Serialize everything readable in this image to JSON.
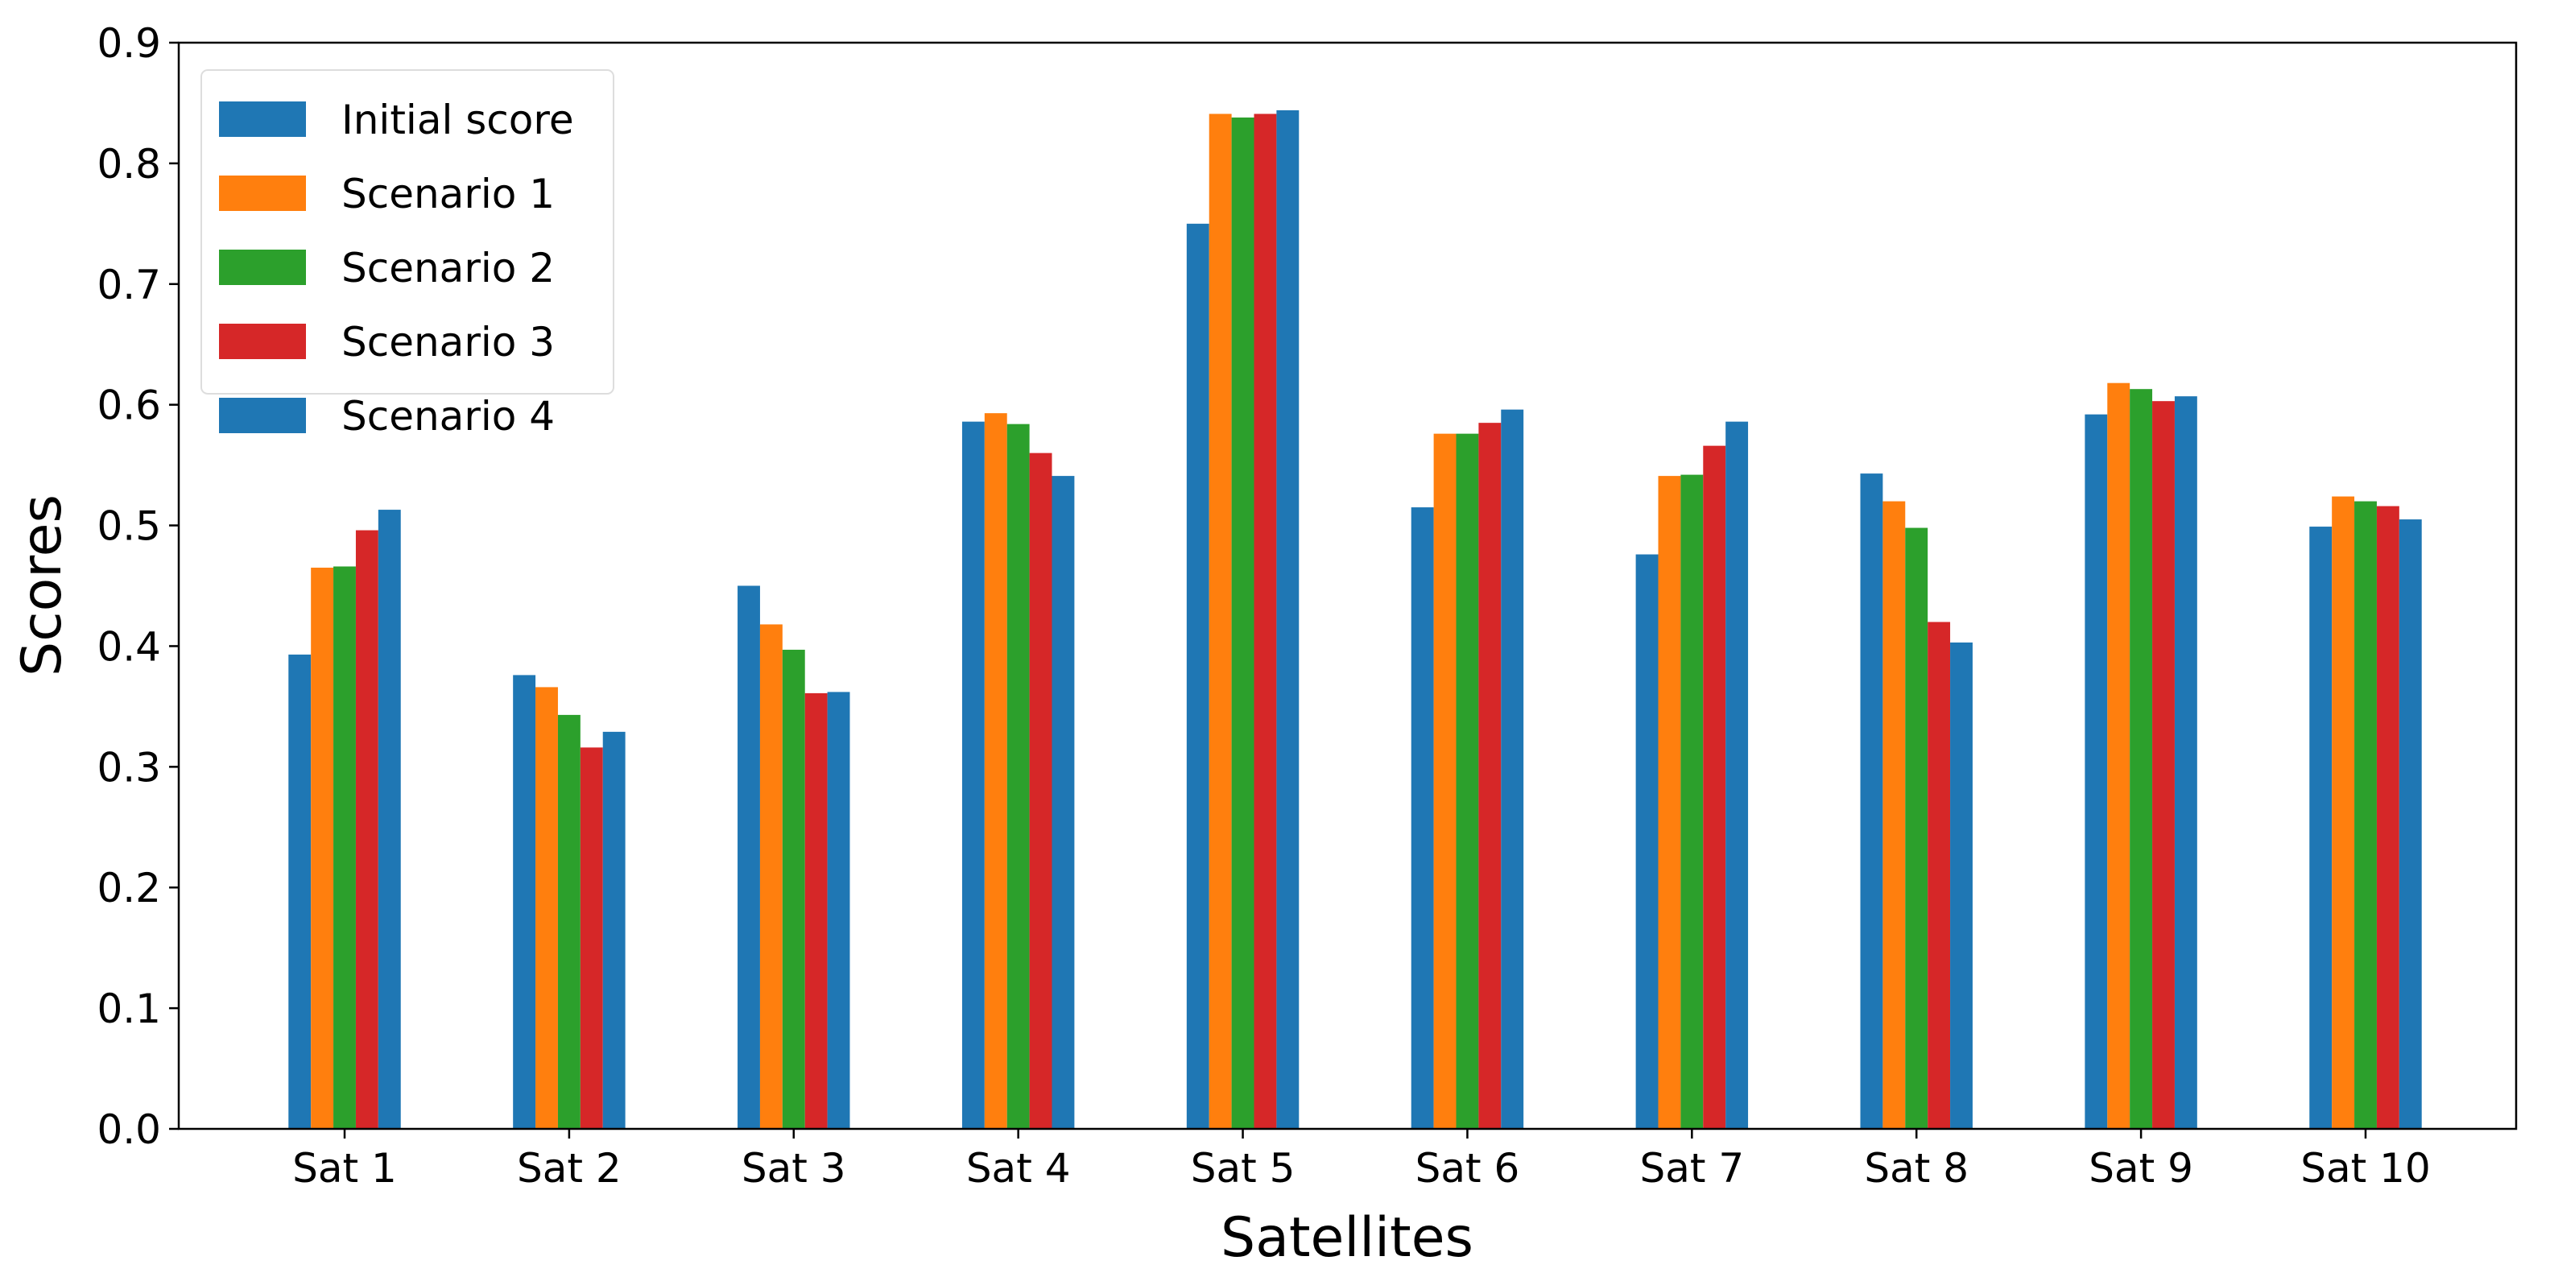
{
  "chart_data": {
    "type": "bar",
    "title": "",
    "xlabel": "Satellites",
    "ylabel": "Scores",
    "ylim": [
      0,
      0.9
    ],
    "yticks": [
      "0.0",
      "0.1",
      "0.2",
      "0.3",
      "0.4",
      "0.5",
      "0.6",
      "0.7",
      "0.8",
      "0.9"
    ],
    "grid": false,
    "legend_position": "top-left",
    "categories": [
      "Sat 1",
      "Sat 2",
      "Sat 3",
      "Sat 4",
      "Sat 5",
      "Sat 6",
      "Sat 7",
      "Sat 8",
      "Sat 9",
      "Sat 10"
    ],
    "series": [
      {
        "name": "Initial score",
        "color": "#1f77b4",
        "values": [
          0.393,
          0.376,
          0.45,
          0.586,
          0.75,
          0.515,
          0.476,
          0.543,
          0.592,
          0.499
        ]
      },
      {
        "name": "Scenario 1",
        "color": "#ff7f0e",
        "values": [
          0.465,
          0.366,
          0.418,
          0.593,
          0.841,
          0.576,
          0.541,
          0.52,
          0.618,
          0.524
        ]
      },
      {
        "name": "Scenario 2",
        "color": "#2ca02c",
        "values": [
          0.466,
          0.343,
          0.397,
          0.584,
          0.838,
          0.576,
          0.542,
          0.498,
          0.613,
          0.52
        ]
      },
      {
        "name": "Scenario 3",
        "color": "#d62728",
        "values": [
          0.496,
          0.316,
          0.361,
          0.56,
          0.841,
          0.585,
          0.566,
          0.42,
          0.603,
          0.516
        ]
      },
      {
        "name": "Scenario 4",
        "color": "#1f77b4",
        "values": [
          0.513,
          0.329,
          0.362,
          0.541,
          0.844,
          0.596,
          0.586,
          0.403,
          0.607,
          0.505
        ]
      }
    ]
  }
}
